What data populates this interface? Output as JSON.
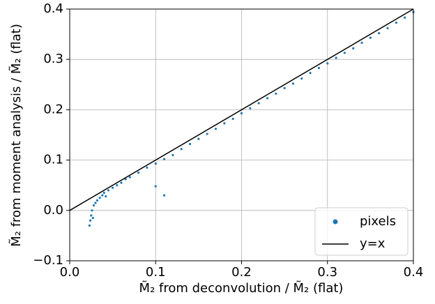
{
  "chart_data": {
    "type": "scatter",
    "xlabel": "M̃₂ from deconvolution / M̃₂ (flat)",
    "ylabel": "M̃₂ from moment analysis / M̃₂ (flat)",
    "xlim": [
      0,
      0.4
    ],
    "ylim": [
      -0.1,
      0.4
    ],
    "xticks": [
      {
        "value": 0,
        "label": "0.0"
      },
      0.1,
      0.2,
      0.3,
      0.4
    ],
    "yticks": [
      {
        "value": -0.1,
        "label": "−0.1"
      },
      {
        "value": 0,
        "label": "0.0"
      },
      0.1,
      0.2,
      0.3,
      0.4
    ],
    "grid": true,
    "legend": "lower right",
    "series": [
      {
        "name": "pixels",
        "color": "#1f77b4",
        "x": [
          0.023,
          0.024,
          0.025,
          0.026,
          0.027,
          0.028,
          0.03,
          0.032,
          0.035,
          0.038,
          0.04,
          0.042,
          0.045,
          0.05,
          0.055,
          0.06,
          0.065,
          0.07,
          0.08,
          0.09,
          0.1,
          0.1,
          0.11,
          0.11,
          0.12,
          0.13,
          0.14,
          0.15,
          0.16,
          0.17,
          0.18,
          0.19,
          0.2,
          0.21,
          0.22,
          0.23,
          0.24,
          0.25,
          0.26,
          0.27,
          0.28,
          0.29,
          0.3,
          0.31,
          0.32,
          0.33,
          0.34,
          0.35,
          0.36,
          0.37,
          0.38,
          0.39,
          0.4
        ],
        "y": [
          -0.03,
          -0.02,
          -0.01,
          0.0,
          -0.015,
          0.01,
          0.015,
          0.02,
          0.025,
          0.03,
          0.035,
          0.028,
          0.04,
          0.045,
          0.05,
          0.055,
          0.062,
          0.066,
          0.075,
          0.085,
          0.093,
          0.048,
          0.102,
          0.03,
          0.11,
          0.122,
          0.132,
          0.142,
          0.152,
          0.162,
          0.173,
          0.182,
          0.193,
          0.203,
          0.213,
          0.223,
          0.232,
          0.243,
          0.252,
          0.262,
          0.273,
          0.283,
          0.292,
          0.303,
          0.313,
          0.322,
          0.333,
          0.343,
          0.352,
          0.362,
          0.373,
          0.383,
          0.394
        ]
      },
      {
        "name": "y=x",
        "color": "#000000",
        "line": true,
        "x": [
          0,
          0.4
        ],
        "y": [
          0,
          0.4
        ]
      }
    ]
  }
}
